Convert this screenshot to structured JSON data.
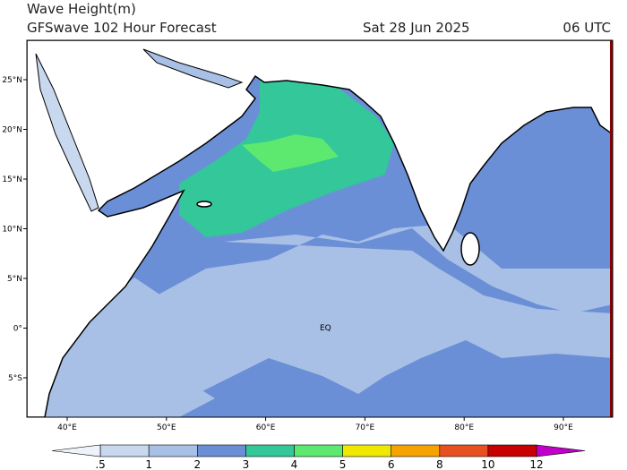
{
  "header": {
    "title": "Wave Height(m)",
    "subtitle": "GFSwave 102 Hour Forecast",
    "date": "Sat 28 Jun 2025",
    "time": "06 UTC"
  },
  "map": {
    "lat_labels": [
      "25°N",
      "20°N",
      "15°N",
      "10°N",
      "5°N",
      "0°",
      "5°S"
    ],
    "lon_labels": [
      "40°E",
      "50°E",
      "60°E",
      "70°E",
      "80°E",
      "90°E"
    ],
    "equator_label": "EQ"
  },
  "legend": {
    "labels": [
      ".5",
      "1",
      "2",
      "3",
      "4",
      "5",
      "6",
      "8",
      "10",
      "12"
    ],
    "colors": [
      "#eef3fb",
      "#c8d8ee",
      "#a8c0e6",
      "#6b8fd6",
      "#33c79a",
      "#5de870",
      "#f0e800",
      "#f5a300",
      "#e85020",
      "#c80000",
      "#c000c8"
    ]
  }
}
